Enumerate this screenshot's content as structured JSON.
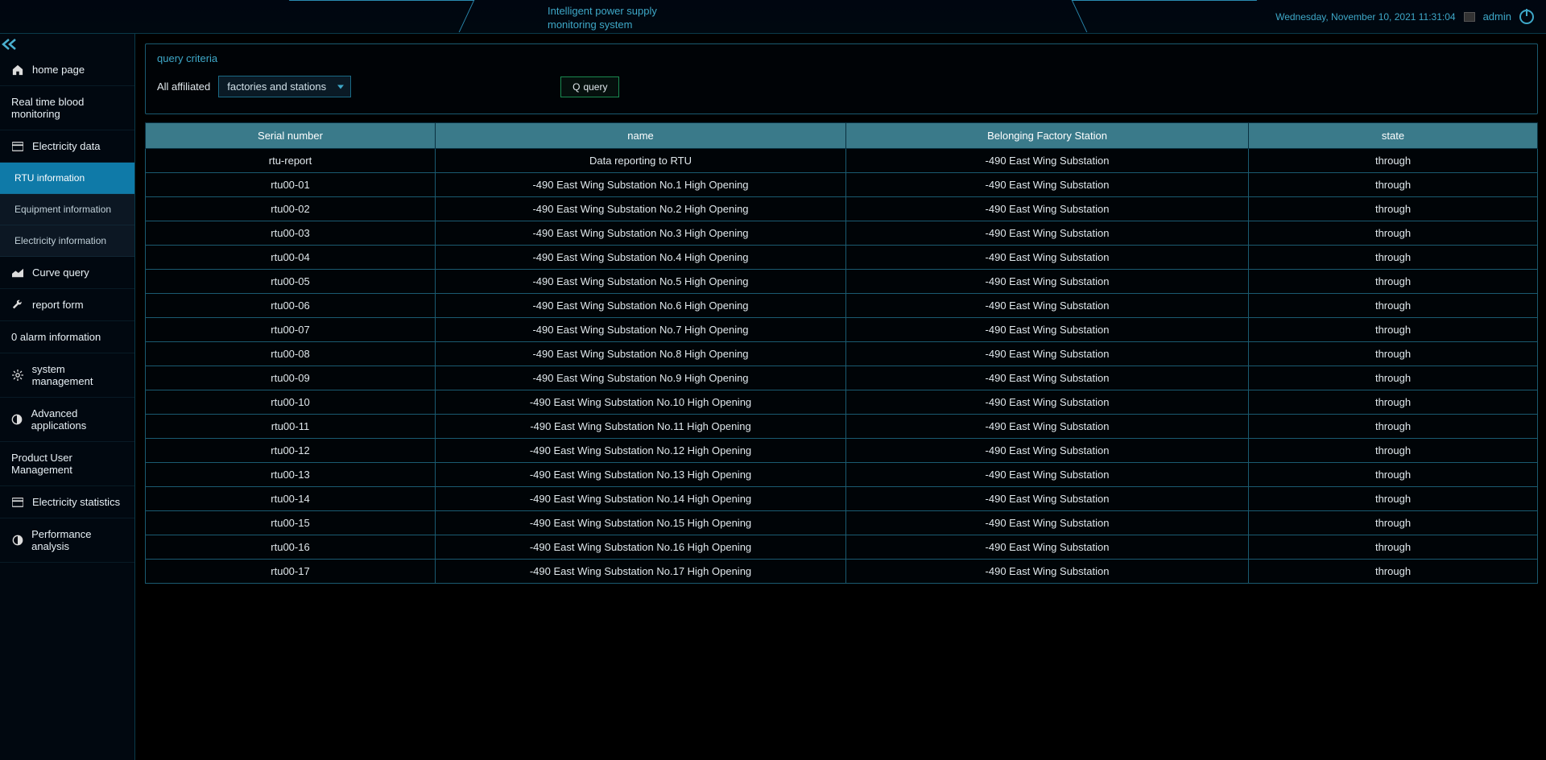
{
  "header": {
    "title": "Intelligent power supply monitoring system",
    "date": "Wednesday, November 10, 2021 11:31:04",
    "user": "admin"
  },
  "sidebar": {
    "items": [
      {
        "icon": "home",
        "label": "home page",
        "sub": false,
        "active": false,
        "showIcon": true
      },
      {
        "icon": "",
        "label": "Real time blood monitoring",
        "sub": false,
        "active": false,
        "showIcon": false
      },
      {
        "icon": "credit",
        "label": "Electricity data",
        "sub": false,
        "active": false,
        "showIcon": true
      },
      {
        "icon": "",
        "label": "RTU information",
        "sub": true,
        "active": true,
        "showIcon": false
      },
      {
        "icon": "",
        "label": "Equipment information",
        "sub": true,
        "active": false,
        "showIcon": false
      },
      {
        "icon": "",
        "label": "Electricity information",
        "sub": true,
        "active": false,
        "showIcon": false
      },
      {
        "icon": "area",
        "label": "Curve query",
        "sub": false,
        "active": false,
        "showIcon": true
      },
      {
        "icon": "wrench",
        "label": "report form",
        "sub": false,
        "active": false,
        "showIcon": true
      },
      {
        "icon": "",
        "label": "0 alarm information",
        "sub": false,
        "active": false,
        "showIcon": false
      },
      {
        "icon": "gear",
        "label": "system management",
        "sub": false,
        "active": false,
        "showIcon": true
      },
      {
        "icon": "half",
        "label": "Advanced applications",
        "sub": false,
        "active": false,
        "showIcon": true
      },
      {
        "icon": "",
        "label": "Product User Management",
        "sub": false,
        "active": false,
        "showIcon": false
      },
      {
        "icon": "credit",
        "label": "Electricity statistics",
        "sub": false,
        "active": false,
        "showIcon": true
      },
      {
        "icon": "half",
        "label": "Performance analysis",
        "sub": false,
        "active": false,
        "showIcon": true
      }
    ]
  },
  "query": {
    "title": "query criteria",
    "label": "All affiliated",
    "dropdown": "factories and stations",
    "button": "query",
    "button_icon": "Q"
  },
  "table": {
    "columns": [
      "Serial number",
      "name",
      "Belonging Factory Station",
      "state"
    ],
    "rows": [
      [
        "rtu-report",
        "Data reporting to RTU",
        "-490 East Wing Substation",
        "through"
      ],
      [
        "rtu00-01",
        "-490 East Wing Substation No.1 High Opening",
        "-490 East Wing Substation",
        "through"
      ],
      [
        "rtu00-02",
        "-490 East Wing Substation No.2 High Opening",
        "-490 East Wing Substation",
        "through"
      ],
      [
        "rtu00-03",
        "-490 East Wing Substation No.3 High Opening",
        "-490 East Wing Substation",
        "through"
      ],
      [
        "rtu00-04",
        "-490 East Wing Substation No.4 High Opening",
        "-490 East Wing Substation",
        "through"
      ],
      [
        "rtu00-05",
        "-490 East Wing Substation No.5 High Opening",
        "-490 East Wing Substation",
        "through"
      ],
      [
        "rtu00-06",
        "-490 East Wing Substation No.6 High Opening",
        "-490 East Wing Substation",
        "through"
      ],
      [
        "rtu00-07",
        "-490 East Wing Substation No.7 High Opening",
        "-490 East Wing Substation",
        "through"
      ],
      [
        "rtu00-08",
        "-490 East Wing Substation No.8 High Opening",
        "-490 East Wing Substation",
        "through"
      ],
      [
        "rtu00-09",
        "-490 East Wing Substation No.9 High Opening",
        "-490 East Wing Substation",
        "through"
      ],
      [
        "rtu00-10",
        "-490 East Wing Substation No.10 High Opening",
        "-490 East Wing Substation",
        "through"
      ],
      [
        "rtu00-11",
        "-490 East Wing Substation No.11 High Opening",
        "-490 East Wing Substation",
        "through"
      ],
      [
        "rtu00-12",
        "-490 East Wing Substation No.12 High Opening",
        "-490 East Wing Substation",
        "through"
      ],
      [
        "rtu00-13",
        "-490 East Wing Substation No.13 High Opening",
        "-490 East Wing Substation",
        "through"
      ],
      [
        "rtu00-14",
        "-490 East Wing Substation No.14 High Opening",
        "-490 East Wing Substation",
        "through"
      ],
      [
        "rtu00-15",
        "-490 East Wing Substation No.15 High Opening",
        "-490 East Wing Substation",
        "through"
      ],
      [
        "rtu00-16",
        "-490 East Wing Substation No.16 High Opening",
        "-490 East Wing Substation",
        "through"
      ],
      [
        "rtu00-17",
        "-490 East Wing Substation No.17 High Opening",
        "-490 East Wing Substation",
        "through"
      ]
    ]
  },
  "icons": {
    "home": "⌂",
    "credit": "▭",
    "area": "📈",
    "wrench": "🔧",
    "gear": "⚙",
    "half": "◐"
  }
}
